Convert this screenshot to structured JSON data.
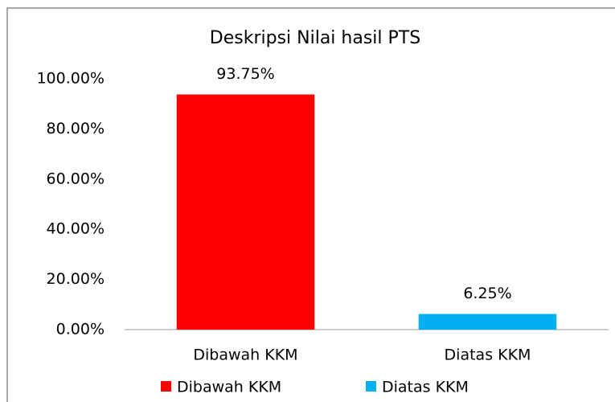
{
  "chart_data": {
    "type": "bar",
    "title": "Deskripsi Nilai hasil PTS",
    "categories": [
      "Dibawah KKM",
      "Diatas KKM"
    ],
    "values": [
      93.75,
      6.25
    ],
    "value_labels": [
      "93.75%",
      "6.25%"
    ],
    "colors": [
      "#ff0000",
      "#00b0f0"
    ],
    "ylim": [
      0,
      100
    ],
    "yticks": [
      {
        "value": 0,
        "label": "0.00%"
      },
      {
        "value": 20,
        "label": "20.00%"
      },
      {
        "value": 40,
        "label": "40.00%"
      },
      {
        "value": 60,
        "label": "60.00%"
      },
      {
        "value": 80,
        "label": "80.00%"
      },
      {
        "value": 100,
        "label": "100.00%"
      }
    ],
    "grid": false,
    "legend": "bottom"
  }
}
